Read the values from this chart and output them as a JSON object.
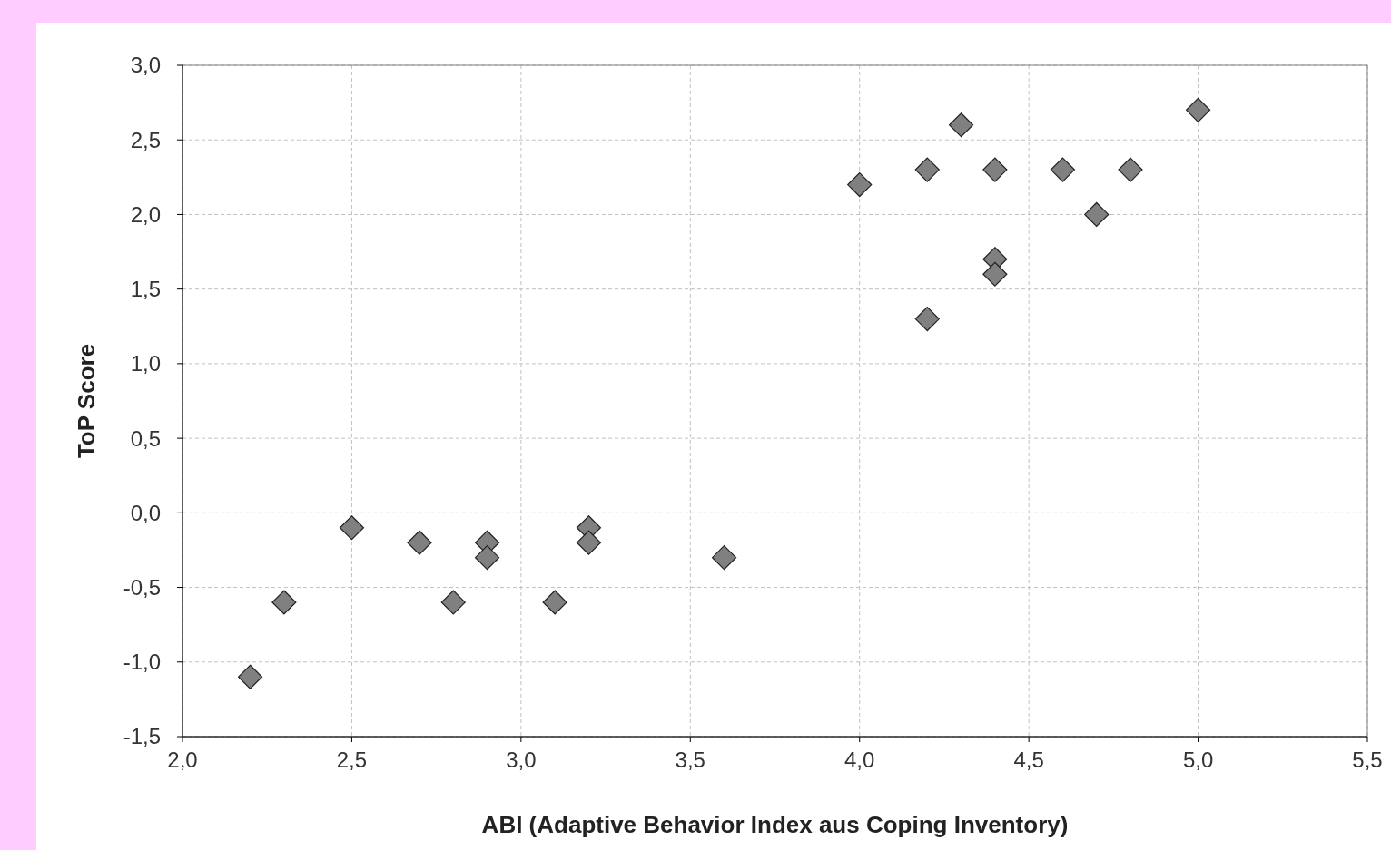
{
  "chart_data": {
    "type": "scatter",
    "xlabel": "ABI (Adaptive Behavior Index aus Coping Inventory)",
    "ylabel": "ToP Score",
    "x": [
      2.2,
      2.3,
      2.5,
      2.7,
      2.8,
      2.9,
      2.9,
      3.1,
      3.2,
      3.2,
      3.6,
      4.0,
      4.2,
      4.2,
      4.3,
      4.4,
      4.4,
      4.4,
      4.6,
      4.7,
      4.8,
      5.0
    ],
    "values": [
      -1.1,
      -0.6,
      -0.1,
      -0.2,
      -0.6,
      -0.2,
      -0.3,
      -0.6,
      -0.1,
      -0.2,
      -0.3,
      2.2,
      2.3,
      1.3,
      2.6,
      2.3,
      1.7,
      1.6,
      2.3,
      2.0,
      2.3,
      2.7
    ],
    "color": "#808080",
    "marker": "diamond",
    "grid": true,
    "xlim": [
      2.0,
      5.5
    ],
    "ylim": [
      -1.5,
      3.0
    ],
    "xticks": [
      {
        "value": 2.0,
        "label": "2,0"
      },
      {
        "value": 2.5,
        "label": "2,5"
      },
      {
        "value": 3.0,
        "label": "3,0"
      },
      {
        "value": 3.5,
        "label": "3,5"
      },
      {
        "value": 4.0,
        "label": "4,0"
      },
      {
        "value": 4.5,
        "label": "4,5"
      },
      {
        "value": 5.0,
        "label": "5,0"
      },
      {
        "value": 5.5,
        "label": "5,5"
      }
    ],
    "yticks": [
      {
        "value": -1.5,
        "label": "-1,5"
      },
      {
        "value": -1.0,
        "label": "-1,0"
      },
      {
        "value": -0.5,
        "label": "-0,5"
      },
      {
        "value": 0.0,
        "label": "0,0"
      },
      {
        "value": 0.5,
        "label": "0,5"
      },
      {
        "value": 1.0,
        "label": "1,0"
      },
      {
        "value": 1.5,
        "label": "1,5"
      },
      {
        "value": 2.0,
        "label": "2,0"
      },
      {
        "value": 2.5,
        "label": "2,5"
      },
      {
        "value": 3.0,
        "label": "3,0"
      }
    ]
  }
}
